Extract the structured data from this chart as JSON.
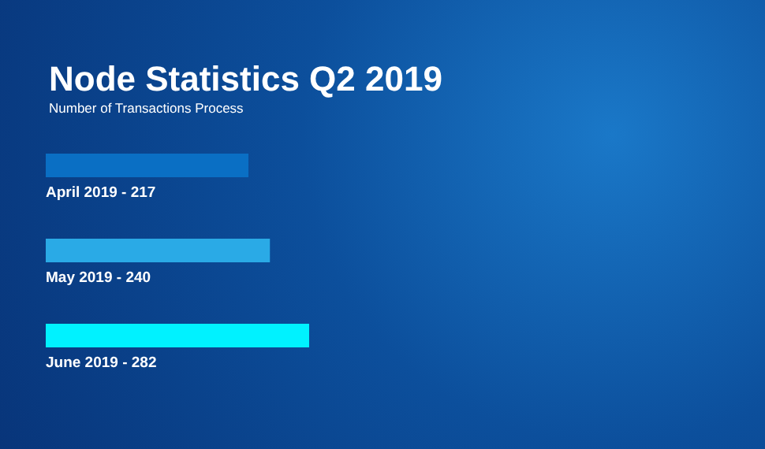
{
  "chart_data": {
    "type": "bar",
    "orientation": "horizontal",
    "title": "Node Statistics Q2 2019",
    "subtitle": "Number of Transactions Process",
    "categories": [
      "April 2019 -",
      "May 2019 -",
      "June 2019 -"
    ],
    "values": [
      217,
      240,
      282
    ],
    "colors": [
      "#0a6fc4",
      "#2aaae6",
      "#00f2ff"
    ],
    "data_labels": true,
    "tick_labels": false
  }
}
